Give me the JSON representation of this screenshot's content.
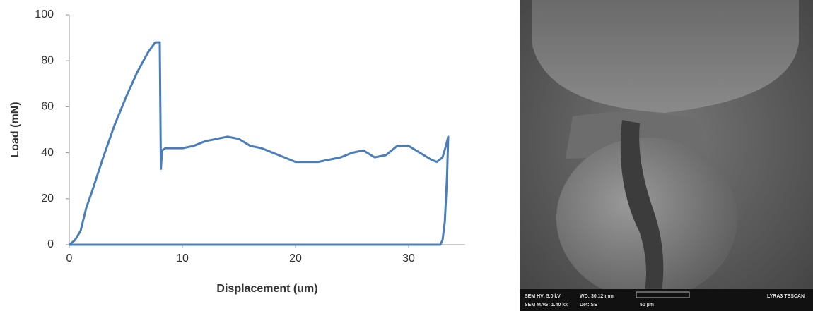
{
  "chart_data": {
    "type": "line",
    "x_label": "Displacement (um)",
    "y_label": "Load (mN)",
    "xlim": [
      0,
      35
    ],
    "xticks": [
      0,
      10,
      20,
      30
    ],
    "ylim": [
      0,
      100
    ],
    "yticks": [
      0,
      20,
      40,
      60,
      80,
      100
    ],
    "series": [
      {
        "color": "#4a7ebb",
        "x": [
          0,
          0.5,
          1,
          1.5,
          2,
          3,
          4,
          5,
          6,
          7,
          7.6,
          8,
          8.05,
          8.1,
          8.2,
          8.5,
          9,
          10,
          11,
          12,
          13,
          14,
          15,
          16,
          17,
          18,
          19,
          20,
          21,
          22,
          23,
          24,
          25,
          26,
          27,
          28,
          29,
          30,
          31,
          32,
          32.5,
          33,
          33.3,
          33.5,
          33.4,
          33.2,
          33,
          32.8,
          0
        ],
        "values": [
          0,
          2,
          6,
          16,
          23,
          38,
          52,
          64,
          75,
          84,
          88,
          88,
          60,
          33,
          41,
          42,
          42,
          42,
          43,
          45,
          46,
          47,
          46,
          43,
          42,
          40,
          38,
          36,
          36,
          36,
          37,
          38,
          40,
          41,
          38,
          39,
          43,
          43,
          40,
          37,
          36,
          38,
          43,
          47,
          30,
          10,
          2,
          0,
          0
        ]
      }
    ]
  },
  "sem_image": {
    "info": [
      "SEM HV: 5.0 kV",
      "WD: 30.12 mm",
      "LYRA3 TESCAN",
      "SEM MAG: 1.40 kx",
      "Det: SE",
      "50 µm"
    ]
  }
}
